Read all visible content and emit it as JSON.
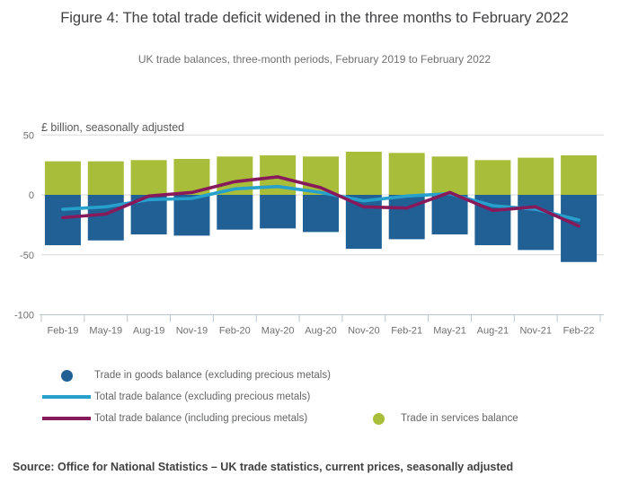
{
  "header": {
    "title": "Figure 4: The total trade deficit widened in the three months to February 2022",
    "subtitle": "UK trade balances, three-month periods, February 2019 to February 2022"
  },
  "chart_data": {
    "type": "bar",
    "title": "Figure 4: The total trade deficit widened in the three months to February 2022",
    "subtitle": "UK trade balances, three-month periods, February 2019 to February 2022",
    "unit_label": "£ billion, seasonally adjusted",
    "categories": [
      "Feb-19",
      "May-19",
      "Aug-19",
      "Nov-19",
      "Feb-20",
      "May-20",
      "Aug-20",
      "Nov-20",
      "Feb-21",
      "May-21",
      "Aug-21",
      "Nov-21",
      "Feb-22"
    ],
    "series": [
      {
        "name": "Trade in services balance",
        "kind": "bar",
        "color": "#a8bd3a",
        "values": [
          28,
          28,
          29,
          30,
          32,
          33,
          32,
          36,
          35,
          32,
          29,
          31,
          33
        ]
      },
      {
        "name": "Trade in goods balance (excluding precious metals)",
        "kind": "bar",
        "color": "#206095",
        "values": [
          -42,
          -38,
          -33,
          -34,
          -29,
          -28,
          -31,
          -45,
          -37,
          -33,
          -42,
          -46,
          -56
        ]
      },
      {
        "name": "Total trade balance (excluding precious metals)",
        "kind": "line",
        "color": "#27a0cc",
        "values": [
          -12,
          -10,
          -4,
          -3,
          5,
          7,
          2,
          -5,
          -1,
          1,
          -9,
          -12,
          -21
        ]
      },
      {
        "name": "Total trade balance (including precious metals)",
        "kind": "line",
        "color": "#871a5b",
        "values": [
          -19,
          -16,
          -1,
          2,
          11,
          15,
          6,
          -10,
          -11,
          2,
          -13,
          -10,
          -26
        ]
      }
    ],
    "ylim": [
      -100,
      50
    ],
    "yticks": [
      50,
      0,
      -50,
      -100
    ],
    "grid": true,
    "legend_position": "bottom",
    "colors": {
      "grid": "#d9d9d9",
      "axis_line": "#b9c6d0",
      "axis_text": "#707071"
    }
  },
  "legend": {
    "items": [
      {
        "label": "Trade in goods balance (excluding precious metals)",
        "marker": "circle",
        "color": "#206095"
      },
      {
        "label": "Total trade balance (excluding precious metals)",
        "marker": "line",
        "color": "#27a0cc"
      },
      {
        "label": "Total trade balance (including precious metals)",
        "marker": "line",
        "color": "#871a5b"
      },
      {
        "label": "Trade in services balance",
        "marker": "circle",
        "color": "#a8bd3a"
      }
    ]
  },
  "footer": {
    "source": "Source: Office for National Statistics – UK trade statistics, current prices, seasonally adjusted"
  }
}
